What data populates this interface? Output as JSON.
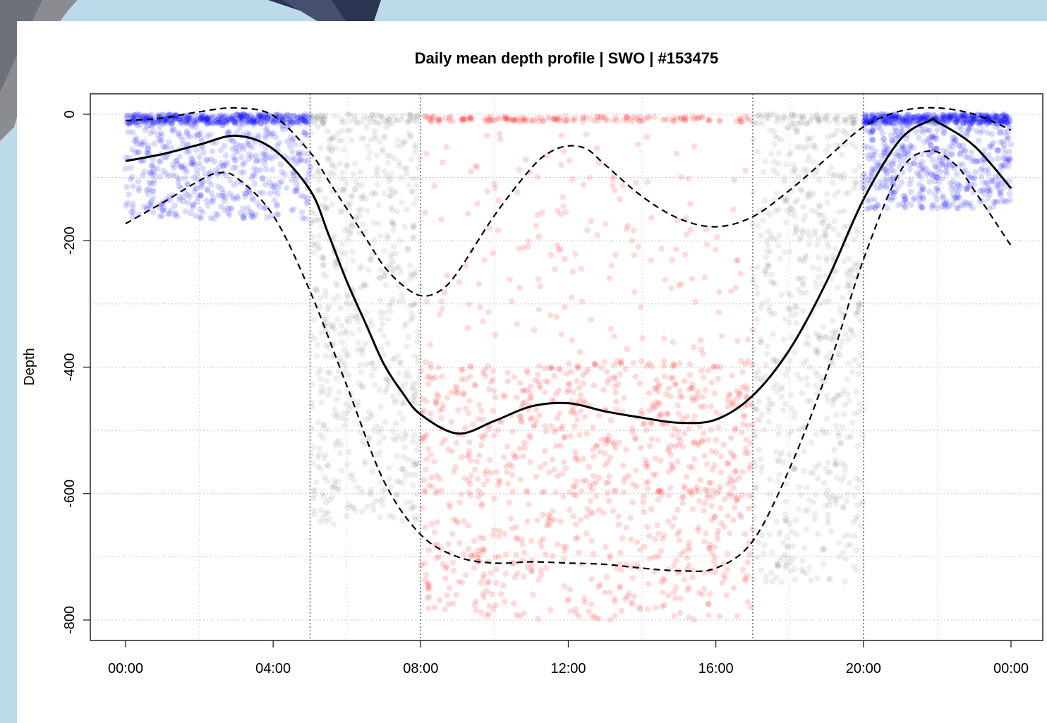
{
  "chart_data": {
    "type": "scatter",
    "title": "Daily mean depth profile | SWO | #153475",
    "xlabel": "",
    "ylabel": "Depth",
    "x_ticks": [
      "00:00",
      "04:00",
      "08:00",
      "12:00",
      "16:00",
      "20:00",
      "00:00"
    ],
    "x_tick_hours": [
      0,
      4,
      8,
      12,
      16,
      20,
      24
    ],
    "xlim": [
      0,
      24
    ],
    "y_ticks": [
      0,
      -200,
      -400,
      -600,
      -800
    ],
    "ylim": [
      -830,
      25
    ],
    "grid": true,
    "period_boundaries_hours": [
      5,
      8,
      17,
      20
    ],
    "colors": {
      "night": "#0000ff",
      "twilight": "#707070",
      "day": "#ff0000",
      "line": "#000000"
    },
    "mean_curve": [
      {
        "x": 0,
        "y": -74
      },
      {
        "x": 1,
        "y": -63
      },
      {
        "x": 2,
        "y": -48
      },
      {
        "x": 3,
        "y": -34
      },
      {
        "x": 4,
        "y": -55
      },
      {
        "x": 5,
        "y": -120
      },
      {
        "x": 5.5,
        "y": -190
      },
      {
        "x": 6,
        "y": -265
      },
      {
        "x": 6.5,
        "y": -330
      },
      {
        "x": 7,
        "y": -395
      },
      {
        "x": 7.5,
        "y": -440
      },
      {
        "x": 8,
        "y": -475
      },
      {
        "x": 9,
        "y": -505
      },
      {
        "x": 10,
        "y": -485
      },
      {
        "x": 11,
        "y": -462
      },
      {
        "x": 12,
        "y": -457
      },
      {
        "x": 13,
        "y": -470
      },
      {
        "x": 14,
        "y": -480
      },
      {
        "x": 15,
        "y": -488
      },
      {
        "x": 16,
        "y": -483
      },
      {
        "x": 17,
        "y": -445
      },
      {
        "x": 18,
        "y": -372
      },
      {
        "x": 19,
        "y": -265
      },
      {
        "x": 20,
        "y": -135
      },
      {
        "x": 21,
        "y": -40
      },
      {
        "x": 21.8,
        "y": -10
      },
      {
        "x": 22,
        "y": -12
      },
      {
        "x": 23,
        "y": -50
      },
      {
        "x": 24,
        "y": -117
      }
    ],
    "upper_curve": [
      {
        "x": 0,
        "y": -10
      },
      {
        "x": 1,
        "y": -6
      },
      {
        "x": 2,
        "y": 4
      },
      {
        "x": 3,
        "y": 10
      },
      {
        "x": 4,
        "y": -2
      },
      {
        "x": 5,
        "y": -60
      },
      {
        "x": 5.5,
        "y": -105
      },
      {
        "x": 6,
        "y": -150
      },
      {
        "x": 6.5,
        "y": -195
      },
      {
        "x": 7,
        "y": -240
      },
      {
        "x": 7.5,
        "y": -270
      },
      {
        "x": 8,
        "y": -287
      },
      {
        "x": 8.5,
        "y": -280
      },
      {
        "x": 9,
        "y": -250
      },
      {
        "x": 10,
        "y": -160
      },
      {
        "x": 11,
        "y": -85
      },
      {
        "x": 11.5,
        "y": -60
      },
      {
        "x": 12,
        "y": -50
      },
      {
        "x": 12.5,
        "y": -55
      },
      {
        "x": 13,
        "y": -80
      },
      {
        "x": 14,
        "y": -130
      },
      {
        "x": 15,
        "y": -165
      },
      {
        "x": 16,
        "y": -178
      },
      {
        "x": 17,
        "y": -162
      },
      {
        "x": 18,
        "y": -120
      },
      {
        "x": 19,
        "y": -70
      },
      {
        "x": 20,
        "y": -20
      },
      {
        "x": 21,
        "y": 5
      },
      {
        "x": 22,
        "y": 10
      },
      {
        "x": 23,
        "y": 0
      },
      {
        "x": 24,
        "y": -25
      }
    ],
    "lower_curve": [
      {
        "x": 0,
        "y": -173
      },
      {
        "x": 1,
        "y": -140
      },
      {
        "x": 2,
        "y": -105
      },
      {
        "x": 2.5,
        "y": -93
      },
      {
        "x": 3,
        "y": -100
      },
      {
        "x": 4,
        "y": -160
      },
      {
        "x": 5,
        "y": -280
      },
      {
        "x": 6,
        "y": -430
      },
      {
        "x": 7,
        "y": -580
      },
      {
        "x": 8,
        "y": -665
      },
      {
        "x": 9,
        "y": -700
      },
      {
        "x": 10,
        "y": -710
      },
      {
        "x": 11,
        "y": -708
      },
      {
        "x": 12,
        "y": -710
      },
      {
        "x": 13,
        "y": -712
      },
      {
        "x": 14,
        "y": -718
      },
      {
        "x": 15,
        "y": -722
      },
      {
        "x": 16,
        "y": -718
      },
      {
        "x": 17,
        "y": -675
      },
      {
        "x": 18,
        "y": -560
      },
      {
        "x": 19,
        "y": -410
      },
      {
        "x": 20,
        "y": -230
      },
      {
        "x": 21,
        "y": -90
      },
      {
        "x": 21.8,
        "y": -58
      },
      {
        "x": 22.5,
        "y": -80
      },
      {
        "x": 23,
        "y": -120
      },
      {
        "x": 24,
        "y": -208
      }
    ],
    "point_clouds": [
      {
        "period": "night",
        "x_range": [
          0,
          5
        ],
        "depth_bands": [
          {
            "from": 0,
            "to": -15,
            "share": 0.45
          },
          {
            "from": -10,
            "to": -165,
            "share": 0.55
          }
        ]
      },
      {
        "period": "twilight",
        "x_range": [
          5,
          8
        ],
        "depth_bands": [
          {
            "from": 0,
            "to": -15,
            "share": 0.1
          },
          {
            "from": -20,
            "to": -650,
            "share": 0.9
          }
        ]
      },
      {
        "period": "day",
        "x_range": [
          8,
          17
        ],
        "depth_bands": [
          {
            "from": -3,
            "to": -12,
            "share": 0.12
          },
          {
            "from": -30,
            "to": -380,
            "share": 0.13
          },
          {
            "from": -390,
            "to": -600,
            "share": 0.45
          },
          {
            "from": -600,
            "to": -800,
            "share": 0.3
          }
        ]
      },
      {
        "period": "twilight",
        "x_range": [
          17,
          20
        ],
        "depth_bands": [
          {
            "from": 0,
            "to": -15,
            "share": 0.1
          },
          {
            "from": -20,
            "to": -740,
            "share": 0.9
          }
        ]
      },
      {
        "period": "night",
        "x_range": [
          20,
          24
        ],
        "depth_bands": [
          {
            "from": 0,
            "to": -15,
            "share": 0.45
          },
          {
            "from": -10,
            "to": -150,
            "share": 0.55
          }
        ]
      }
    ]
  }
}
